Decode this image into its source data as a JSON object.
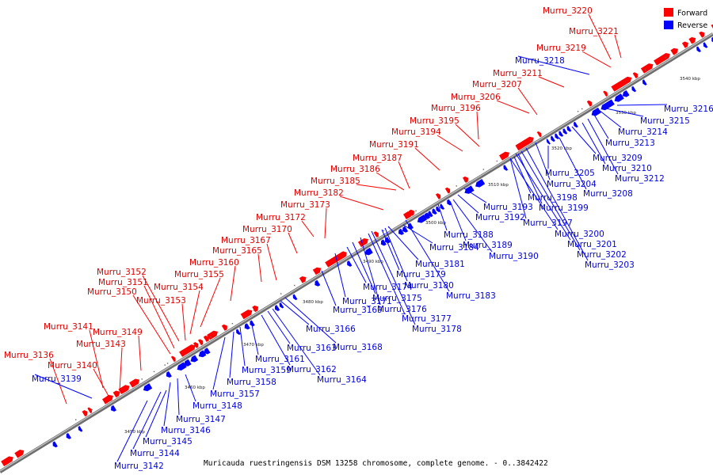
{
  "caption": "Muricauda ruestringensis DSM 13258 chromosome, complete genome. - 0..3842422",
  "legend": [
    {
      "label": "Forward",
      "color": "#ff0000"
    },
    {
      "label": "Reverse",
      "color": "#0000ff"
    }
  ],
  "colors": {
    "forward": "#ff0000",
    "reverse": "#0000ff",
    "axis": "#8c8c8c"
  },
  "ticks": [
    "3450 kbp",
    "3460 kbp",
    "3470 kbp",
    "3480 kbp",
    "3490 kbp",
    "3500 kbp",
    "3510 kbp",
    "3520 kbp",
    "3530 kbp",
    "3540 kbp"
  ],
  "forward_genes": [
    "Murru_3136",
    "Murru_3140",
    "Murru_3141",
    "Murru_3143",
    "Murru_3149",
    "Murru_3150",
    "Murru_3151",
    "Murru_3152",
    "Murru_3153",
    "Murru_3154",
    "Murru_3155",
    "Murru_3160",
    "Murru_3165",
    "Murru_3167",
    "Murru_3170",
    "Murru_3172",
    "Murru_3173",
    "Murru_3182",
    "Murru_3185",
    "Murru_3186",
    "Murru_3187",
    "Murru_3191",
    "Murru_3194",
    "Murru_3195",
    "Murru_3196",
    "Murru_3206",
    "Murru_3207",
    "Murru_3211",
    "Murru_3219",
    "Murru_3220",
    "Murru_3221"
  ],
  "reverse_genes": [
    "Murru_3139",
    "Murru_3142",
    "Murru_3144",
    "Murru_3145",
    "Murru_3146",
    "Murru_3147",
    "Murru_3148",
    "Murru_3157",
    "Murru_3158",
    "Murru_3159",
    "Murru_3161",
    "Murru_3162",
    "Murru_3163",
    "Murru_3164",
    "Murru_3166",
    "Murru_3168",
    "Murru_3169",
    "Murru_3171",
    "Murru_3174",
    "Murru_3175",
    "Murru_3176",
    "Murru_3177",
    "Murru_3178",
    "Murru_3179",
    "Murru_3180",
    "Murru_3181",
    "Murru_3183",
    "Murru_3184",
    "Murru_3188",
    "Murru_3189",
    "Murru_3190",
    "Murru_3192",
    "Murru_3193",
    "Murru_3197",
    "Murru_3198",
    "Murru_3199",
    "Murru_3200",
    "Murru_3201",
    "Murru_3202",
    "Murru_3203",
    "Murru_3204",
    "Murru_3205",
    "Murru_3208",
    "Murru_3209",
    "Murru_3210",
    "Murru_3212",
    "Murru_3213",
    "Murru_3214",
    "Murru_3215",
    "Murru_3216",
    "Murru_3218"
  ]
}
